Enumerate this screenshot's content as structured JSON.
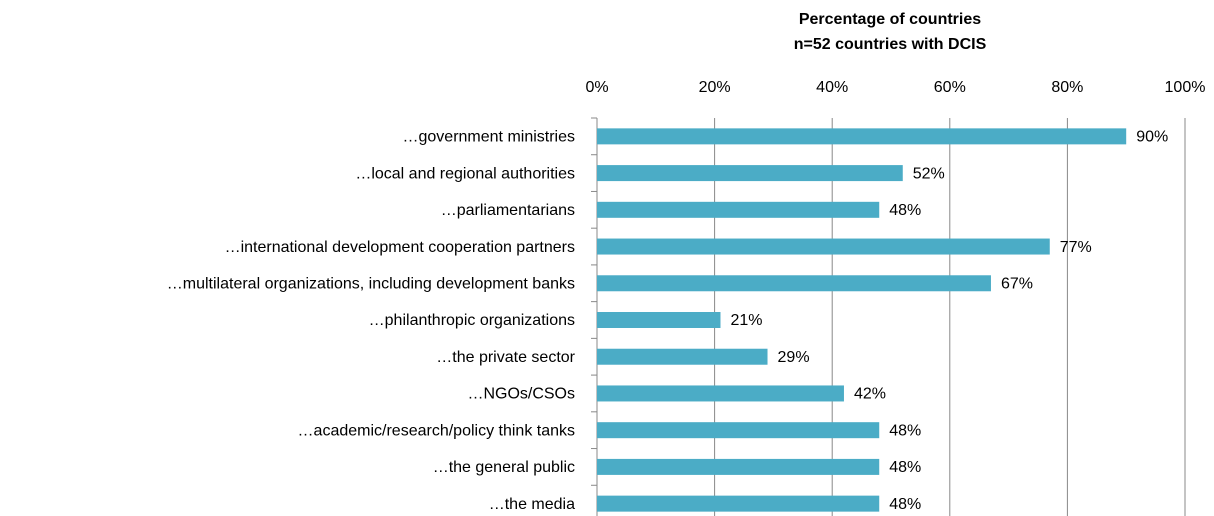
{
  "chart_data": {
    "type": "barh",
    "title": "Percentage of countries",
    "subtitle": "n=52 countries with DCIS",
    "categories": [
      "…government ministries",
      "…local and regional authorities",
      "…parliamentarians",
      "…international development cooperation partners",
      "…multilateral organizations, including development banks",
      "…philanthropic organizations",
      "…the private sector",
      "…NGOs/CSOs",
      "…academic/research/policy think tanks",
      "…the general public",
      "…the media"
    ],
    "values": [
      90,
      52,
      48,
      77,
      67,
      21,
      29,
      42,
      48,
      48,
      48
    ],
    "value_labels": [
      "90%",
      "52%",
      "48%",
      "77%",
      "67%",
      "21%",
      "29%",
      "42%",
      "48%",
      "48%",
      "48%"
    ],
    "color": "#4bacc6",
    "xlim": [
      0,
      100
    ],
    "xticks": [
      {
        "value": 0,
        "label": "0%"
      },
      {
        "value": 20,
        "label": "20%"
      },
      {
        "value": 40,
        "label": "40%"
      },
      {
        "value": 60,
        "label": "60%"
      },
      {
        "value": 80,
        "label": "80%"
      },
      {
        "value": 100,
        "label": "100%"
      }
    ],
    "grid": true
  }
}
